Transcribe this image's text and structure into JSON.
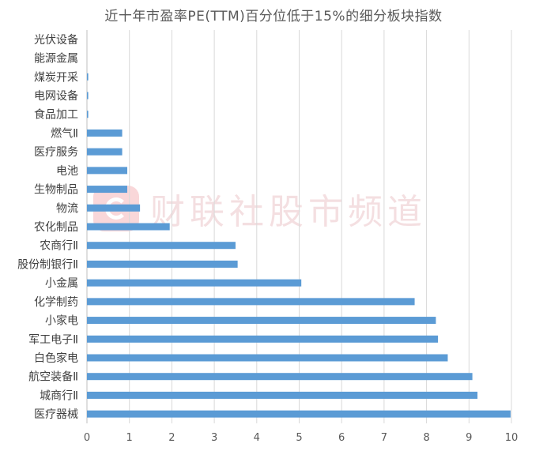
{
  "chart_data": {
    "type": "bar",
    "orientation": "horizontal",
    "title": "近十年市盈率PE(TTM)百分位低于15%的细分板块指数",
    "categories": [
      "光伏设备",
      "能源金属",
      "煤炭开采",
      "电网设备",
      "食品加工",
      "燃气Ⅱ",
      "医疗服务",
      "电池",
      "生物制品",
      "物流",
      "农化制品",
      "农商行Ⅱ",
      "股份制银行Ⅱ",
      "小金属",
      "化学制药",
      "小家电",
      "军工电子Ⅱ",
      "白色家电",
      "航空装备Ⅱ",
      "城商行Ⅱ",
      "医疗器械"
    ],
    "values": [
      0,
      0,
      0.03,
      0.03,
      0.03,
      0.83,
      0.83,
      0.95,
      0.95,
      1.25,
      1.95,
      3.5,
      3.55,
      5.05,
      7.72,
      8.22,
      8.27,
      8.5,
      9.08,
      9.2,
      9.98
    ],
    "xlim": [
      0,
      10
    ],
    "xticks": [
      "0",
      "1",
      "2",
      "3",
      "4",
      "5",
      "6",
      "7",
      "8",
      "9",
      "10"
    ],
    "grid": true,
    "legend": "none",
    "bar_color": "#5b9bd5"
  },
  "watermark": {
    "text": "财联社股市频道"
  }
}
